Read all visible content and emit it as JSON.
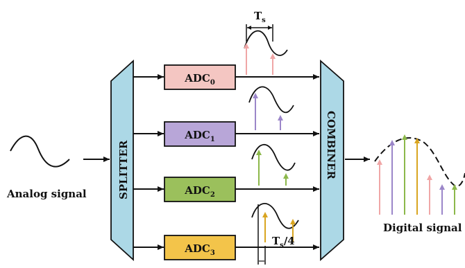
{
  "labels": {
    "ts_main": "T",
    "ts_main_sub": "s",
    "ts_quarter": "T",
    "ts_quarter_sub": "s",
    "ts_quarter_tail": "/4",
    "analog_signal": "Analog signal",
    "digital_signal": "Digital signal",
    "splitter": "SPLITTER",
    "combiner": "COMBINER"
  },
  "adcs": [
    {
      "prefix": "ADC",
      "sub": "0"
    },
    {
      "prefix": "ADC",
      "sub": "1"
    },
    {
      "prefix": "ADC",
      "sub": "2"
    },
    {
      "prefix": "ADC",
      "sub": "3"
    }
  ],
  "colors": {
    "adc0_fill": "#f4c6c2",
    "adc1_fill": "#b8a6d8",
    "adc2_fill": "#9bc05c",
    "adc3_fill": "#f3c44a",
    "adc0_arrow": "#f0a6a6",
    "adc1_arrow": "#9b86c9",
    "adc2_arrow": "#8cb84a",
    "adc3_arrow": "#d9a520",
    "trapezoid_fill": "#acd8e6",
    "stroke": "#111111"
  }
}
